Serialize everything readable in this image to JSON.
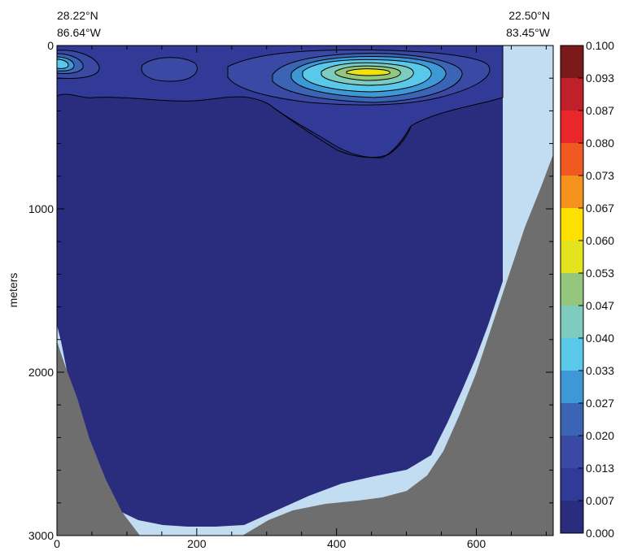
{
  "chart_data": {
    "type": "heatmap",
    "title": "",
    "ylabel": "meters",
    "xlabel": "",
    "x_ticks": [
      0,
      200,
      400,
      600
    ],
    "y_ticks": [
      0,
      1000,
      2000,
      3000
    ],
    "xlim": [
      0,
      710
    ],
    "ylim": [
      3000,
      0
    ],
    "left_endpoint": {
      "lat": "28.22°N",
      "lon": "86.64°W"
    },
    "right_endpoint": {
      "lat": "22.50°N",
      "lon": "83.45°W"
    },
    "colorbar": {
      "levels": [
        "0.100",
        "0.093",
        "0.087",
        "0.080",
        "0.073",
        "0.067",
        "0.060",
        "0.053",
        "0.047",
        "0.040",
        "0.033",
        "0.027",
        "0.020",
        "0.013",
        "0.007",
        "0.000"
      ],
      "colors": [
        "#7a1a1a",
        "#c0202a",
        "#e8282a",
        "#f05a22",
        "#f5921e",
        "#fde000",
        "#e4e41e",
        "#94c67e",
        "#7ecbbf",
        "#5ac8e8",
        "#3f98d6",
        "#3c64b4",
        "#3a4aa4",
        "#323a98",
        "#2a2d7e"
      ]
    },
    "background_colors": {
      "water": "#2a2d7e",
      "no_data": "#c2dcf2",
      "bathymetry": "#6e6e6e"
    }
  }
}
